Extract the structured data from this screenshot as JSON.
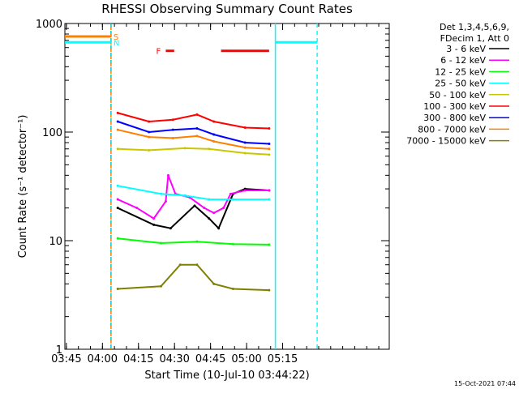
{
  "chart_data": {
    "type": "line",
    "title": "RHESSI Observing Summary Count Rates",
    "xlabel": "Start Time (10-Jul-10 03:44:22)",
    "ylabel": "Count Rate (s⁻¹ detector⁻¹)",
    "x_range_min": [
      0,
      135
    ],
    "ylim": [
      1,
      1000
    ],
    "y_scale": "log",
    "grid": false,
    "legend_position": "right",
    "footer": "15-Oct-2021 07:44",
    "legend_header": [
      "Det 1,3,4,5,6,9,",
      "FDecim 1, Att 0"
    ],
    "x_ticks": [
      {
        "label": "03:45",
        "min": 0.63
      },
      {
        "label": "04:00",
        "min": 15.63
      },
      {
        "label": "04:15",
        "min": 30.63
      },
      {
        "label": "04:30",
        "min": 45.63
      },
      {
        "label": "04:45",
        "min": 60.63
      },
      {
        "label": "05:00",
        "min": 75.63
      },
      {
        "label": "05:15",
        "min": 90.63
      }
    ],
    "y_ticks": [
      {
        "label": "1",
        "value": 1
      },
      {
        "label": "10",
        "value": 10
      },
      {
        "label": "100",
        "value": 100
      },
      {
        "label": "1000",
        "value": 1000
      }
    ],
    "flags": [
      {
        "label": "S",
        "color": "#ff8000",
        "y_value": 760,
        "segments": [
          [
            0,
            19.2
          ]
        ]
      },
      {
        "label": "N",
        "color": "#00ffff",
        "y_value": 670,
        "segments": [
          [
            0,
            19.2
          ],
          [
            87.6,
            105
          ]
        ]
      },
      {
        "label": "F",
        "color": "#ff0000",
        "y_value": 560,
        "segments": [
          [
            42,
            45.5
          ],
          [
            65,
            85
          ]
        ]
      }
    ],
    "vertical_lines": [
      {
        "min": 19.2,
        "color": "#00c8c8",
        "style": "dashed-alt"
      },
      {
        "min": 87.6,
        "color": "#00ffff",
        "style": "solid"
      },
      {
        "min": 105,
        "color": "#00ffff",
        "style": "dashed"
      }
    ],
    "series": [
      {
        "name": "3 - 6 keV",
        "color": "#000000",
        "x_min": [
          22,
          37,
          44,
          54,
          60,
          64,
          70,
          75,
          85
        ],
        "values": [
          20,
          14,
          13,
          21,
          16,
          13,
          27,
          30,
          29
        ]
      },
      {
        "name": "6 - 12 keV",
        "color": "#ff00ff",
        "x_min": [
          22,
          30,
          37,
          42,
          43,
          46,
          52,
          58,
          62,
          66,
          69,
          75,
          85
        ],
        "values": [
          24,
          20,
          16,
          23,
          40,
          27,
          25,
          20,
          18,
          20,
          27,
          29,
          29
        ]
      },
      {
        "name": "12 - 25 keV",
        "color": "#00ff00",
        "x_min": [
          22,
          40,
          55,
          70,
          85
        ],
        "values": [
          10.5,
          9.5,
          9.8,
          9.3,
          9.2
        ]
      },
      {
        "name": "25 - 50 keV",
        "color": "#00ffff",
        "x_min": [
          22,
          40,
          50,
          60,
          70,
          85
        ],
        "values": [
          32,
          27,
          26,
          24,
          24,
          24
        ]
      },
      {
        "name": "50 - 100 keV",
        "color": "#c8c800",
        "x_min": [
          22,
          35,
          50,
          60,
          75,
          85
        ],
        "values": [
          70,
          68,
          71,
          70,
          64,
          62
        ]
      },
      {
        "name": "100 - 300 keV",
        "color": "#ff0000",
        "x_min": [
          22,
          35,
          45,
          55,
          62,
          75,
          85
        ],
        "values": [
          150,
          125,
          130,
          145,
          125,
          110,
          108
        ]
      },
      {
        "name": "300 - 800 keV",
        "color": "#0000ff",
        "x_min": [
          22,
          35,
          45,
          55,
          62,
          75,
          85
        ],
        "values": [
          125,
          100,
          105,
          108,
          95,
          80,
          78
        ]
      },
      {
        "name": "800 - 7000 keV",
        "color": "#ff8000",
        "x_min": [
          22,
          35,
          45,
          55,
          62,
          75,
          85
        ],
        "values": [
          105,
          90,
          88,
          92,
          82,
          72,
          70
        ]
      },
      {
        "name": "7000 - 15000 keV",
        "color": "#808000",
        "x_min": [
          22,
          40,
          48,
          55,
          62,
          70,
          85
        ],
        "values": [
          3.6,
          3.8,
          6.0,
          6.0,
          4.0,
          3.6,
          3.5
        ]
      }
    ]
  }
}
